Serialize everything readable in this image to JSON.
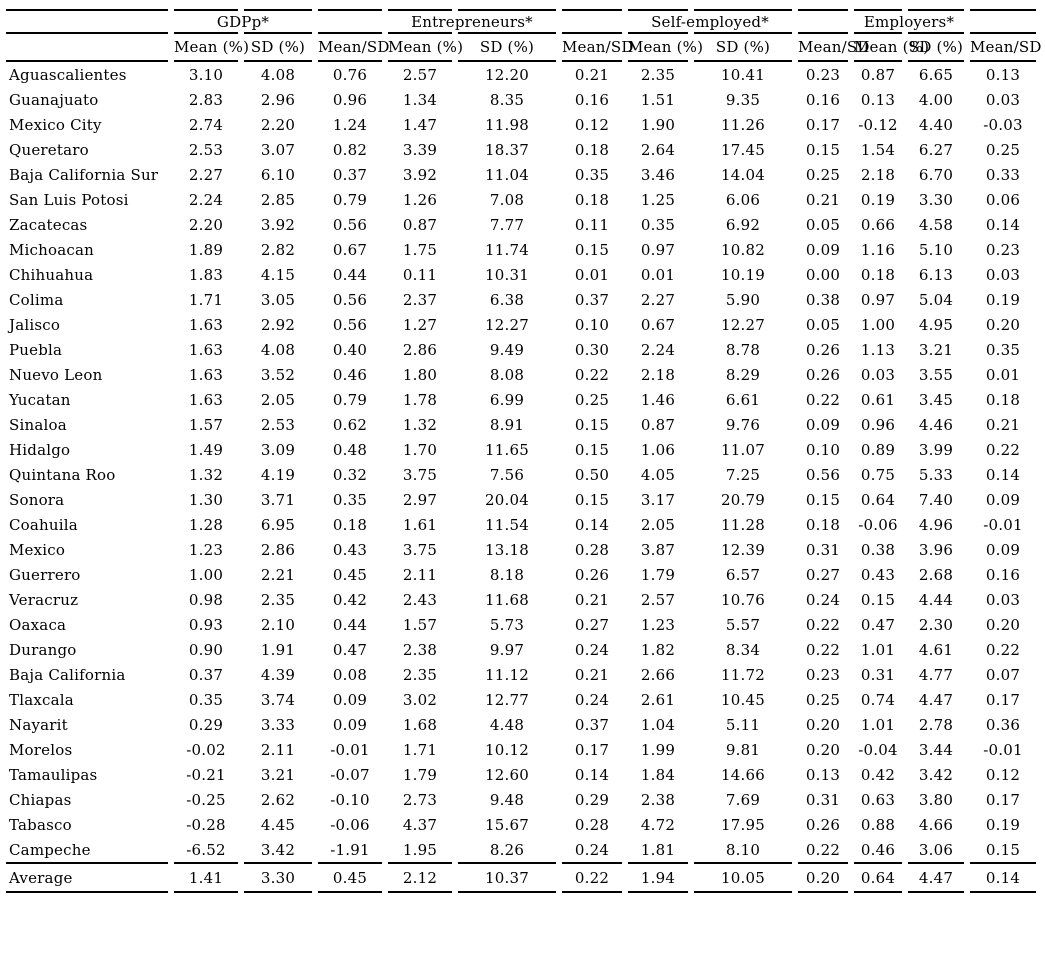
{
  "table": {
    "groups": [
      "GDPp*",
      "Entrepreneurs*",
      "Self-employed*",
      "Employers*"
    ],
    "subheaders": [
      "Mean (%)",
      "SD (%)",
      "Mean/SD"
    ],
    "rows": [
      {
        "state": "Aguascalientes",
        "values": [
          "3.10",
          "4.08",
          "0.76",
          "2.57",
          "12.20",
          "0.21",
          "2.35",
          "10.41",
          "0.23",
          "0.87",
          "6.65",
          "0.13"
        ]
      },
      {
        "state": "Guanajuato",
        "values": [
          "2.83",
          "2.96",
          "0.96",
          "1.34",
          "8.35",
          "0.16",
          "1.51",
          "9.35",
          "0.16",
          "0.13",
          "4.00",
          "0.03"
        ]
      },
      {
        "state": "Mexico City",
        "values": [
          "2.74",
          "2.20",
          "1.24",
          "1.47",
          "11.98",
          "0.12",
          "1.90",
          "11.26",
          "0.17",
          "-0.12",
          "4.40",
          "-0.03"
        ]
      },
      {
        "state": "Queretaro",
        "values": [
          "2.53",
          "3.07",
          "0.82",
          "3.39",
          "18.37",
          "0.18",
          "2.64",
          "17.45",
          "0.15",
          "1.54",
          "6.27",
          "0.25"
        ]
      },
      {
        "state": "Baja California Sur",
        "values": [
          "2.27",
          "6.10",
          "0.37",
          "3.92",
          "11.04",
          "0.35",
          "3.46",
          "14.04",
          "0.25",
          "2.18",
          "6.70",
          "0.33"
        ]
      },
      {
        "state": "San Luis Potosi",
        "values": [
          "2.24",
          "2.85",
          "0.79",
          "1.26",
          "7.08",
          "0.18",
          "1.25",
          "6.06",
          "0.21",
          "0.19",
          "3.30",
          "0.06"
        ]
      },
      {
        "state": "Zacatecas",
        "values": [
          "2.20",
          "3.92",
          "0.56",
          "0.87",
          "7.77",
          "0.11",
          "0.35",
          "6.92",
          "0.05",
          "0.66",
          "4.58",
          "0.14"
        ]
      },
      {
        "state": "Michoacan",
        "values": [
          "1.89",
          "2.82",
          "0.67",
          "1.75",
          "11.74",
          "0.15",
          "0.97",
          "10.82",
          "0.09",
          "1.16",
          "5.10",
          "0.23"
        ]
      },
      {
        "state": "Chihuahua",
        "values": [
          "1.83",
          "4.15",
          "0.44",
          "0.11",
          "10.31",
          "0.01",
          "0.01",
          "10.19",
          "0.00",
          "0.18",
          "6.13",
          "0.03"
        ]
      },
      {
        "state": "Colima",
        "values": [
          "1.71",
          "3.05",
          "0.56",
          "2.37",
          "6.38",
          "0.37",
          "2.27",
          "5.90",
          "0.38",
          "0.97",
          "5.04",
          "0.19"
        ]
      },
      {
        "state": "Jalisco",
        "values": [
          "1.63",
          "2.92",
          "0.56",
          "1.27",
          "12.27",
          "0.10",
          "0.67",
          "12.27",
          "0.05",
          "1.00",
          "4.95",
          "0.20"
        ]
      },
      {
        "state": "Puebla",
        "values": [
          "1.63",
          "4.08",
          "0.40",
          "2.86",
          "9.49",
          "0.30",
          "2.24",
          "8.78",
          "0.26",
          "1.13",
          "3.21",
          "0.35"
        ]
      },
      {
        "state": "Nuevo Leon",
        "values": [
          "1.63",
          "3.52",
          "0.46",
          "1.80",
          "8.08",
          "0.22",
          "2.18",
          "8.29",
          "0.26",
          "0.03",
          "3.55",
          "0.01"
        ]
      },
      {
        "state": "Yucatan",
        "values": [
          "1.63",
          "2.05",
          "0.79",
          "1.78",
          "6.99",
          "0.25",
          "1.46",
          "6.61",
          "0.22",
          "0.61",
          "3.45",
          "0.18"
        ]
      },
      {
        "state": "Sinaloa",
        "values": [
          "1.57",
          "2.53",
          "0.62",
          "1.32",
          "8.91",
          "0.15",
          "0.87",
          "9.76",
          "0.09",
          "0.96",
          "4.46",
          "0.21"
        ]
      },
      {
        "state": "Hidalgo",
        "values": [
          "1.49",
          "3.09",
          "0.48",
          "1.70",
          "11.65",
          "0.15",
          "1.06",
          "11.07",
          "0.10",
          "0.89",
          "3.99",
          "0.22"
        ]
      },
      {
        "state": "Quintana Roo",
        "values": [
          "1.32",
          "4.19",
          "0.32",
          "3.75",
          "7.56",
          "0.50",
          "4.05",
          "7.25",
          "0.56",
          "0.75",
          "5.33",
          "0.14"
        ]
      },
      {
        "state": "Sonora",
        "values": [
          "1.30",
          "3.71",
          "0.35",
          "2.97",
          "20.04",
          "0.15",
          "3.17",
          "20.79",
          "0.15",
          "0.64",
          "7.40",
          "0.09"
        ]
      },
      {
        "state": "Coahuila",
        "values": [
          "1.28",
          "6.95",
          "0.18",
          "1.61",
          "11.54",
          "0.14",
          "2.05",
          "11.28",
          "0.18",
          "-0.06",
          "4.96",
          "-0.01"
        ]
      },
      {
        "state": "Mexico",
        "values": [
          "1.23",
          "2.86",
          "0.43",
          "3.75",
          "13.18",
          "0.28",
          "3.87",
          "12.39",
          "0.31",
          "0.38",
          "3.96",
          "0.09"
        ]
      },
      {
        "state": "Guerrero",
        "values": [
          "1.00",
          "2.21",
          "0.45",
          "2.11",
          "8.18",
          "0.26",
          "1.79",
          "6.57",
          "0.27",
          "0.43",
          "2.68",
          "0.16"
        ]
      },
      {
        "state": "Veracruz",
        "values": [
          "0.98",
          "2.35",
          "0.42",
          "2.43",
          "11.68",
          "0.21",
          "2.57",
          "10.76",
          "0.24",
          "0.15",
          "4.44",
          "0.03"
        ]
      },
      {
        "state": "Oaxaca",
        "values": [
          "0.93",
          "2.10",
          "0.44",
          "1.57",
          "5.73",
          "0.27",
          "1.23",
          "5.57",
          "0.22",
          "0.47",
          "2.30",
          "0.20"
        ]
      },
      {
        "state": "Durango",
        "values": [
          "0.90",
          "1.91",
          "0.47",
          "2.38",
          "9.97",
          "0.24",
          "1.82",
          "8.34",
          "0.22",
          "1.01",
          "4.61",
          "0.22"
        ]
      },
      {
        "state": "Baja California",
        "values": [
          "0.37",
          "4.39",
          "0.08",
          "2.35",
          "11.12",
          "0.21",
          "2.66",
          "11.72",
          "0.23",
          "0.31",
          "4.77",
          "0.07"
        ]
      },
      {
        "state": "Tlaxcala",
        "values": [
          "0.35",
          "3.74",
          "0.09",
          "3.02",
          "12.77",
          "0.24",
          "2.61",
          "10.45",
          "0.25",
          "0.74",
          "4.47",
          "0.17"
        ]
      },
      {
        "state": "Nayarit",
        "values": [
          "0.29",
          "3.33",
          "0.09",
          "1.68",
          "4.48",
          "0.37",
          "1.04",
          "5.11",
          "0.20",
          "1.01",
          "2.78",
          "0.36"
        ]
      },
      {
        "state": "Morelos",
        "values": [
          "-0.02",
          "2.11",
          "-0.01",
          "1.71",
          "10.12",
          "0.17",
          "1.99",
          "9.81",
          "0.20",
          "-0.04",
          "3.44",
          "-0.01"
        ]
      },
      {
        "state": "Tamaulipas",
        "values": [
          "-0.21",
          "3.21",
          "-0.07",
          "1.79",
          "12.60",
          "0.14",
          "1.84",
          "14.66",
          "0.13",
          "0.42",
          "3.42",
          "0.12"
        ]
      },
      {
        "state": "Chiapas",
        "values": [
          "-0.25",
          "2.62",
          "-0.10",
          "2.73",
          "9.48",
          "0.29",
          "2.38",
          "7.69",
          "0.31",
          "0.63",
          "3.80",
          "0.17"
        ]
      },
      {
        "state": "Tabasco",
        "values": [
          "-0.28",
          "4.45",
          "-0.06",
          "4.37",
          "15.67",
          "0.28",
          "4.72",
          "17.95",
          "0.26",
          "0.88",
          "4.66",
          "0.19"
        ]
      },
      {
        "state": "Campeche",
        "values": [
          "-6.52",
          "3.42",
          "-1.91",
          "1.95",
          "8.26",
          "0.24",
          "1.81",
          "8.10",
          "0.22",
          "0.46",
          "3.06",
          "0.15"
        ]
      }
    ],
    "average": {
      "state": "Average",
      "values": [
        "1.41",
        "3.30",
        "0.45",
        "2.12",
        "10.37",
        "0.22",
        "1.94",
        "10.05",
        "0.20",
        "0.64",
        "4.47",
        "0.14"
      ]
    }
  }
}
